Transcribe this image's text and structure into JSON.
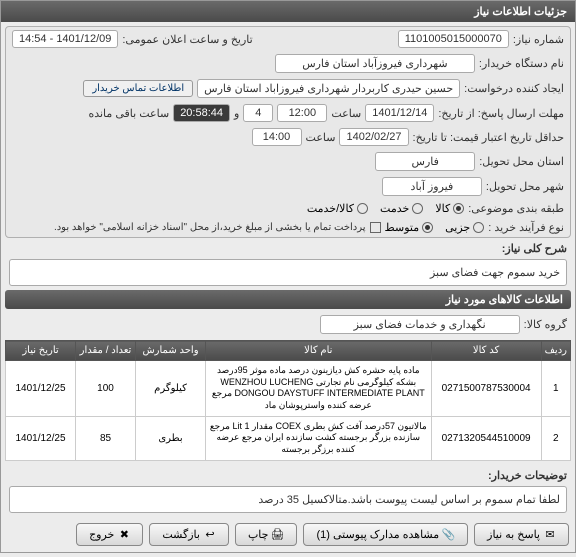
{
  "header_title": "جزئیات اطلاعات نیاز",
  "fields": {
    "need_number_label": "شماره نیاز:",
    "need_number": "1101005015000070",
    "announce_label": "تاریخ و ساعت اعلان عمومی:",
    "announce_value": "1401/12/09 - 14:54",
    "buyer_org_label": "نام دستگاه خریدار:",
    "buyer_org": "شهرداری فیروزآباد استان فارس",
    "requester_label": "ایجاد کننده درخواست:",
    "requester": "حسین حیدری کاربردار شهرداری فیروزاباد استان فارس",
    "contact_link": "اطلاعات تماس خریدار",
    "reply_deadline_label": "مهلت ارسال پاسخ: از تاریخ:",
    "reply_date": "1401/12/14",
    "time_label": "ساعت",
    "reply_time": "12:00",
    "duration": "4",
    "countdown": "20:58:44",
    "remaining_label": "ساعت باقی مانده",
    "validity_label": "حداقل تاریخ اعتبار قیمت: تا تاریخ:",
    "validity_date": "1402/02/27",
    "validity_time": "14:00",
    "province_label": "استان محل تحویل:",
    "province": "فارس",
    "city_label": "شهر محل تحویل:",
    "city": "فیروز آباد",
    "category_label": "طبقه بندی موضوعی:",
    "cat_goods": "کالا",
    "cat_service": "خدمت",
    "cat_both": "کالا/خدمت",
    "purchase_type_label": "نوع فرآیند خرید :",
    "pt_small": "جزیی",
    "pt_medium": "متوسط",
    "payment_note": "پرداخت تمام یا بخشی از مبلغ خرید،از محل \"اسناد خزانه اسلامی\" خواهد بود.",
    "need_title_label": "شرح کلی نیاز:",
    "need_title": "خرید سموم جهت فضای سبز",
    "section_items": "اطلاعات کالاهای مورد نیاز",
    "goods_group_label": "گروه کالا:",
    "goods_group": "نگهداری و خدمات فضای سبز",
    "buyer_note_label": "توضیحات خریدار:",
    "buyer_note": "لطفا تمام سموم بر اساس لیست پیوست باشد.متالاکسیل 35 درصد"
  },
  "table": {
    "headers": [
      "ردیف",
      "کد کالا",
      "نام کالا",
      "واحد شمارش",
      "تعداد / مقدار",
      "تاریخ نیاز"
    ],
    "rows": [
      {
        "idx": "1",
        "code": "0271500787530004",
        "name": "ماده پایه حشره کش دیازینون درصد ماده موثر 95درصد بشکه کیلوگرمی نام تجارتی WENZHOU LUCHENG DONGOU DAYSTUFF INTERMEDIATE PLANT مرجع عرضه کننده واسترپوشان ماد",
        "unit": "کیلوگرم",
        "qty": "100",
        "date": "1401/12/25"
      },
      {
        "idx": "2",
        "code": "0271320544510009",
        "name": "مالاتیون 57درصد آفت کش بطری COEX مقدار Lit 1 مرجع سازنده بزرگر برجسته کشت سازنده ایران مرجع عرضه کننده برزگر برجسته",
        "unit": "بطری",
        "qty": "85",
        "date": "1401/12/25"
      }
    ]
  },
  "buttons": {
    "reply": "پاسخ به نیاز",
    "attachments": "مشاهده مدارک پیوستی (1)",
    "print": "چاپ",
    "back": "بازگشت",
    "exit": "خروج"
  },
  "colors": {
    "header_bg": "#555555",
    "accent": "#003366"
  }
}
